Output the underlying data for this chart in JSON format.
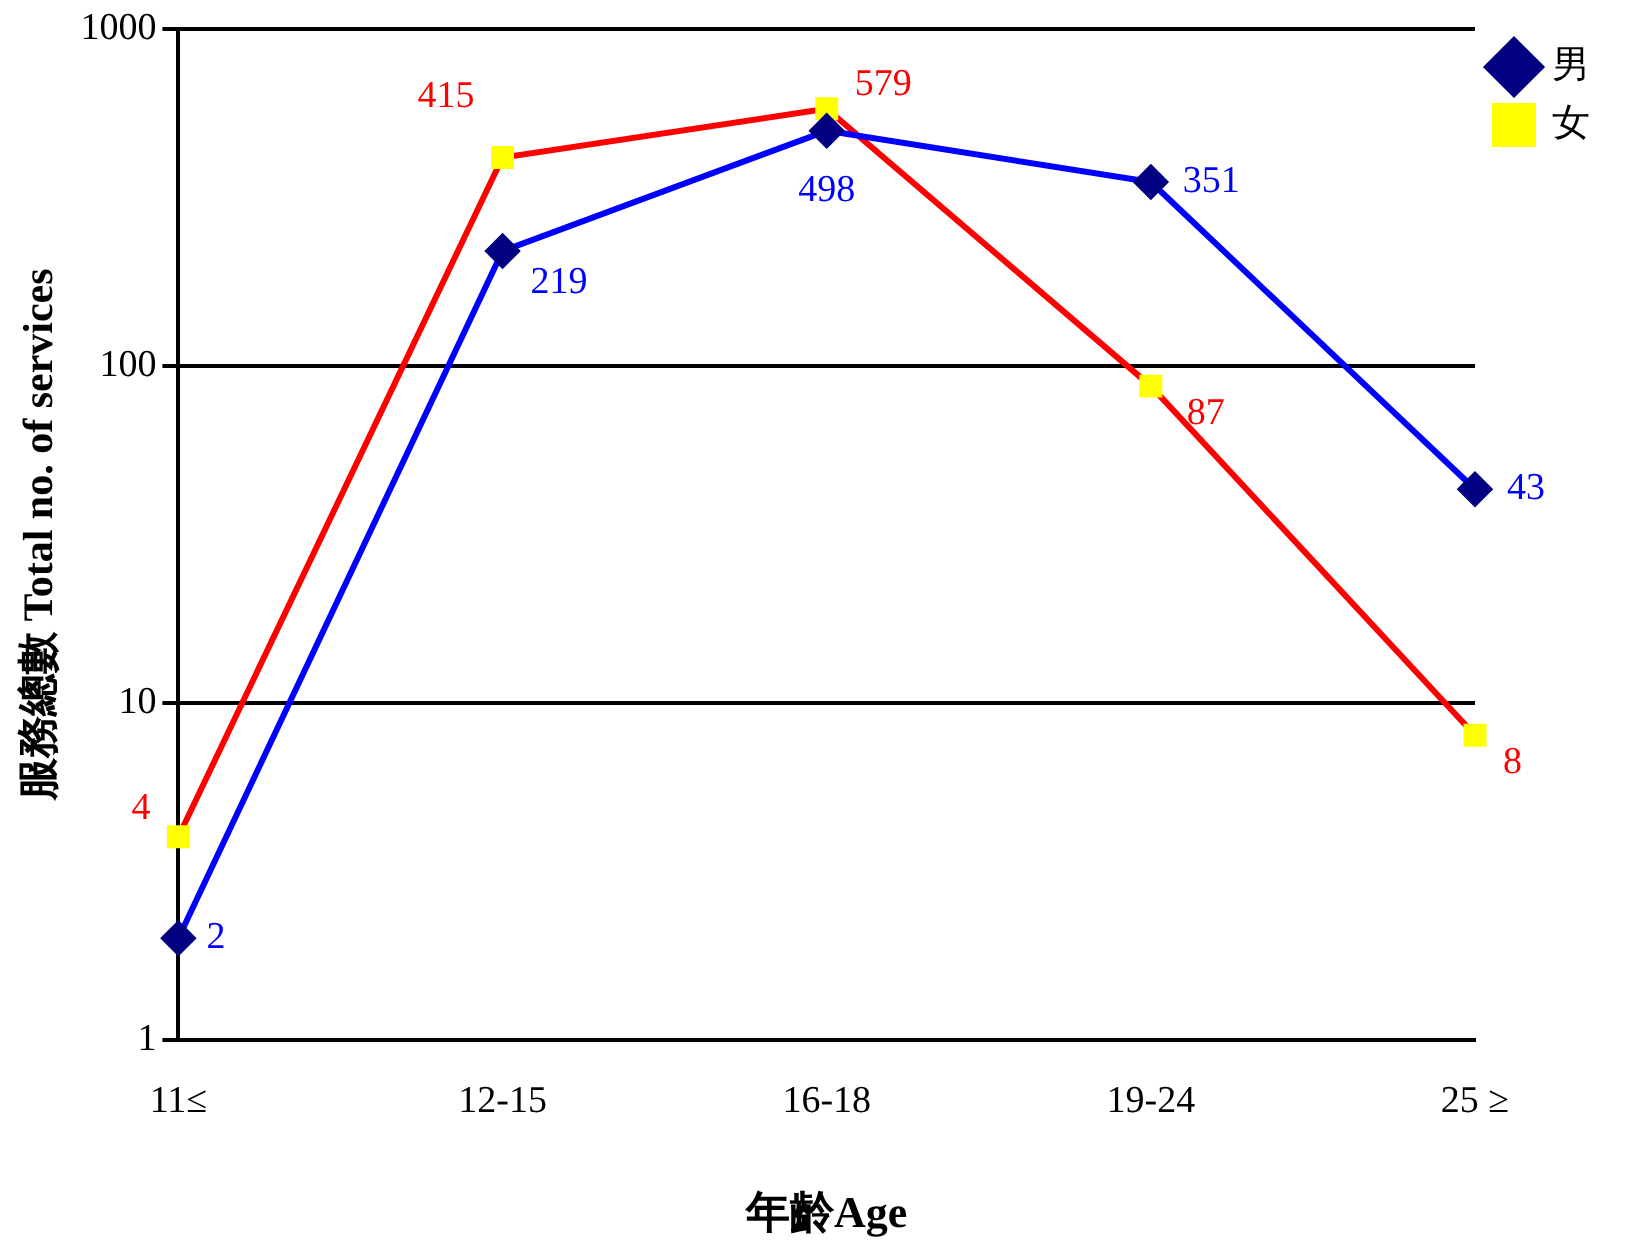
{
  "chart_data": {
    "type": "line",
    "xlabel": "年齡Age",
    "ylabel": "服務總數 Total no. of services",
    "categories": [
      "11≤",
      "12-15",
      "16-18",
      "19-24",
      "25 ≥"
    ],
    "series": [
      {
        "name": "男",
        "color": "#0000ff",
        "colors": [
          "#000080",
          "#000080",
          "#000080",
          "#000080",
          "#000080"
        ],
        "marker": "diamond",
        "values": [
          2,
          219,
          498,
          351,
          43
        ]
      },
      {
        "name": "女",
        "color": "#ff0000",
        "colors": [
          "#ffff00",
          "#ffff00",
          "#ffff00",
          "#ffff00",
          "#ffff00"
        ],
        "marker": "square",
        "values": [
          4,
          415,
          579,
          87,
          8
        ]
      }
    ],
    "log": "y",
    "ylim": [
      1,
      1000
    ],
    "yticks": [
      1,
      10,
      100,
      1000
    ],
    "grid": "y",
    "legend": "top right",
    "data_labels": true,
    "line_style": "solid"
  }
}
